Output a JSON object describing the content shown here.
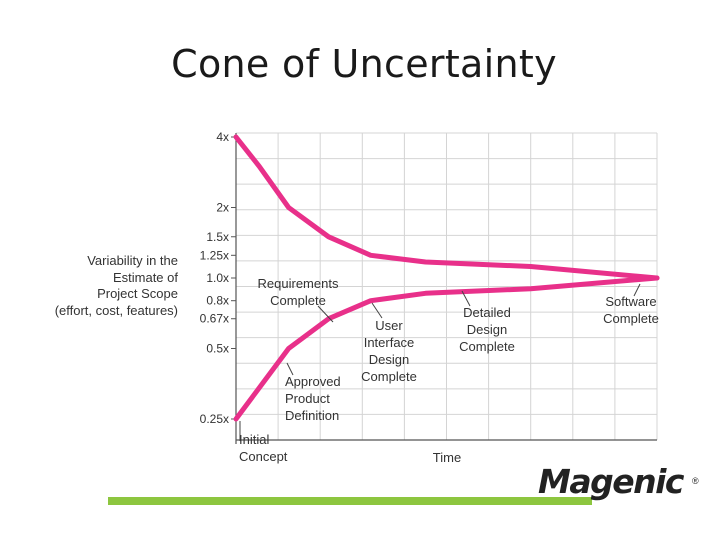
{
  "slide": {
    "title": "Cone of Uncertainty",
    "logo_text": "Magenic",
    "logo_mark": "®"
  },
  "colors": {
    "series": "#e8308a",
    "accent_bar": "#8dc63f",
    "grid": "#d4d4d4"
  },
  "chart_data": {
    "type": "line",
    "title": "Cone of Uncertainty",
    "xlabel": "Time",
    "ylabel_lines": [
      "Variability in the",
      "Estimate of",
      "Project Scope",
      "(effort, cost, features)"
    ],
    "yscale": "log",
    "ylim": [
      0.25,
      4
    ],
    "xlim": [
      0,
      1
    ],
    "yticks": [
      {
        "value": 4,
        "label": "4x"
      },
      {
        "value": 2,
        "label": "2x"
      },
      {
        "value": 1.5,
        "label": "1.5x"
      },
      {
        "value": 1.25,
        "label": "1.25x"
      },
      {
        "value": 1.0,
        "label": "1.0x"
      },
      {
        "value": 0.8,
        "label": "0.8x"
      },
      {
        "value": 0.67,
        "label": "0.67x"
      },
      {
        "value": 0.5,
        "label": "0.5x"
      },
      {
        "value": 0.25,
        "label": "0.25x"
      }
    ],
    "series": [
      {
        "name": "Upper bound",
        "points": [
          {
            "x": 0.0,
            "y": 4.0
          },
          {
            "x": 0.055,
            "y": 3.0
          },
          {
            "x": 0.125,
            "y": 2.0
          },
          {
            "x": 0.22,
            "y": 1.5
          },
          {
            "x": 0.32,
            "y": 1.25
          },
          {
            "x": 0.45,
            "y": 1.17
          },
          {
            "x": 0.7,
            "y": 1.12
          },
          {
            "x": 1.0,
            "y": 1.0
          }
        ]
      },
      {
        "name": "Lower bound",
        "points": [
          {
            "x": 0.0,
            "y": 0.25
          },
          {
            "x": 0.125,
            "y": 0.5
          },
          {
            "x": 0.22,
            "y": 0.67
          },
          {
            "x": 0.32,
            "y": 0.8
          },
          {
            "x": 0.45,
            "y": 0.86
          },
          {
            "x": 0.7,
            "y": 0.9
          },
          {
            "x": 1.0,
            "y": 1.0
          }
        ]
      }
    ],
    "milestones": [
      {
        "label_lines": [
          "Initial",
          "Concept"
        ]
      },
      {
        "label_lines": [
          "Approved",
          "Product",
          "Definition"
        ]
      },
      {
        "label_lines": [
          "Requirements",
          "Complete"
        ]
      },
      {
        "label_lines": [
          "User",
          "Interface",
          "Design",
          "Complete"
        ]
      },
      {
        "label_lines": [
          "Detailed",
          "Design",
          "Complete"
        ]
      },
      {
        "label_lines": [
          "Software",
          "Complete"
        ]
      }
    ]
  }
}
